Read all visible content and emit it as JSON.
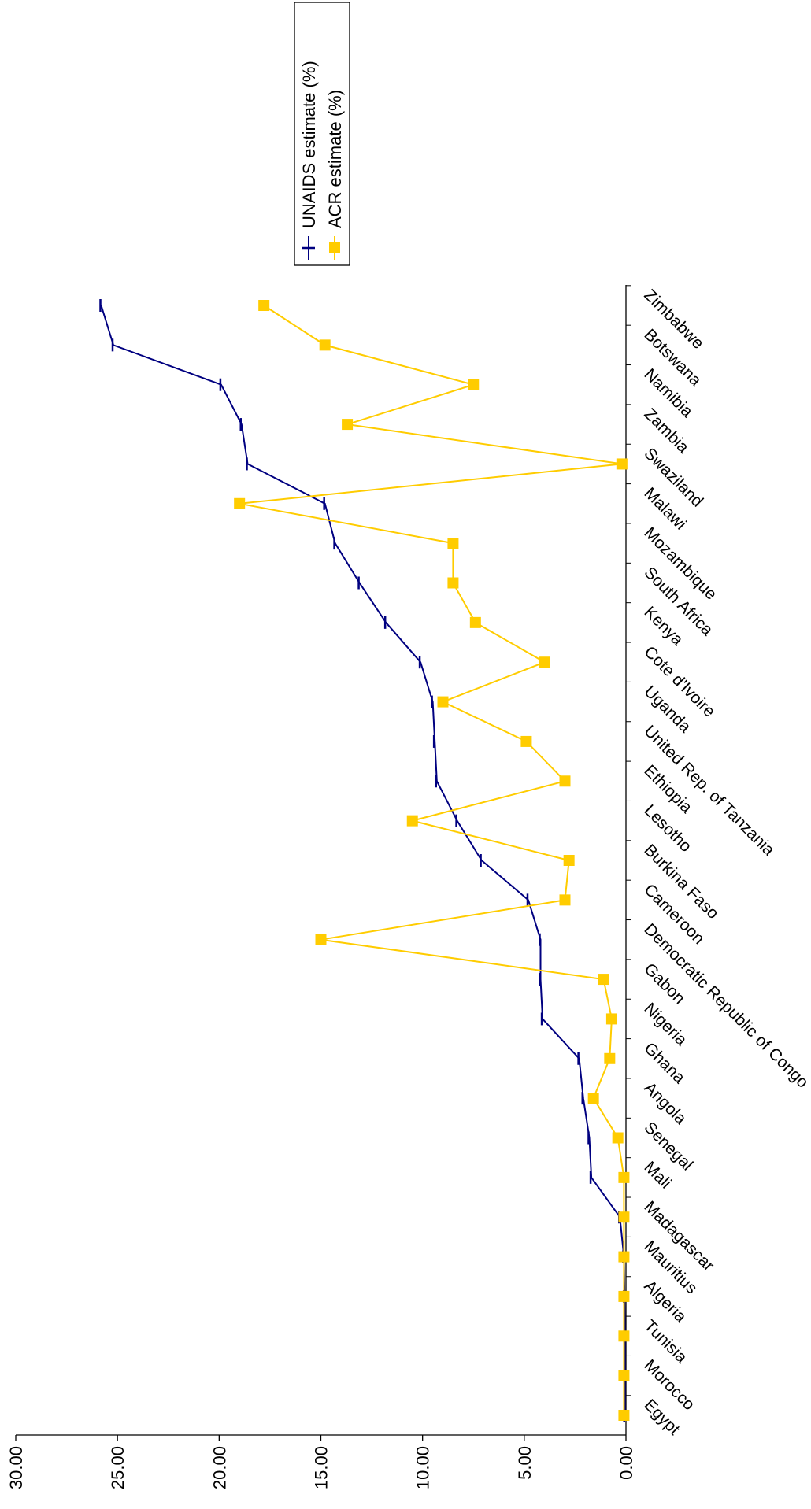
{
  "chart_data": {
    "type": "line",
    "title": "",
    "xlabel": "",
    "ylabel": "",
    "categories": [
      "Egypt",
      "Morocco",
      "Tunisia",
      "Algeria",
      "Mauritius",
      "Madagascar",
      "Mali",
      "Senegal",
      "Angola",
      "Ghana",
      "Nigeria",
      "Gabon",
      "Democratic Republic of Congo",
      "Cameroon",
      "Burkina Faso",
      "Lesotho",
      "Ethiopia",
      "United Rep. of Tanzania",
      "Uganda",
      "Cote d'Ivoire",
      "Kenya",
      "South Africa",
      "Mozambique",
      "Malawi",
      "Swaziland",
      "Zambia",
      "Namibia",
      "Botswana",
      "Zimbabwe"
    ],
    "ylim": [
      0,
      30
    ],
    "y_ticks": [
      0,
      5,
      10,
      15,
      20,
      25,
      30
    ],
    "y_tick_labels": [
      "0.00",
      "5.00",
      "10.00",
      "15.00",
      "20.00",
      "25.00",
      "30.00"
    ],
    "grid": false,
    "legend_position": "top-right",
    "series": [
      {
        "name": "UNAIDS estimate (%)",
        "color": "#000080",
        "marker": "dash",
        "values": [
          0.05,
          0.05,
          0.05,
          0.07,
          0.1,
          0.3,
          1.7,
          1.8,
          2.1,
          2.3,
          4.1,
          4.2,
          4.2,
          4.8,
          7.1,
          8.3,
          9.3,
          9.4,
          9.5,
          10.1,
          11.8,
          13.1,
          14.3,
          14.8,
          18.6,
          18.9,
          19.9,
          25.2,
          25.8
        ]
      },
      {
        "name": "ACR estimate (%)",
        "color": "#FFCC00",
        "marker": "square",
        "values": [
          0.1,
          0.1,
          0.1,
          0.1,
          0.1,
          0.1,
          0.1,
          0.4,
          1.6,
          0.8,
          0.7,
          1.1,
          15.0,
          3.0,
          2.8,
          10.5,
          3.0,
          4.9,
          9.0,
          4.0,
          7.4,
          8.5,
          8.5,
          19.0,
          0.2,
          13.7,
          7.5,
          14.8,
          17.8
        ]
      }
    ]
  }
}
